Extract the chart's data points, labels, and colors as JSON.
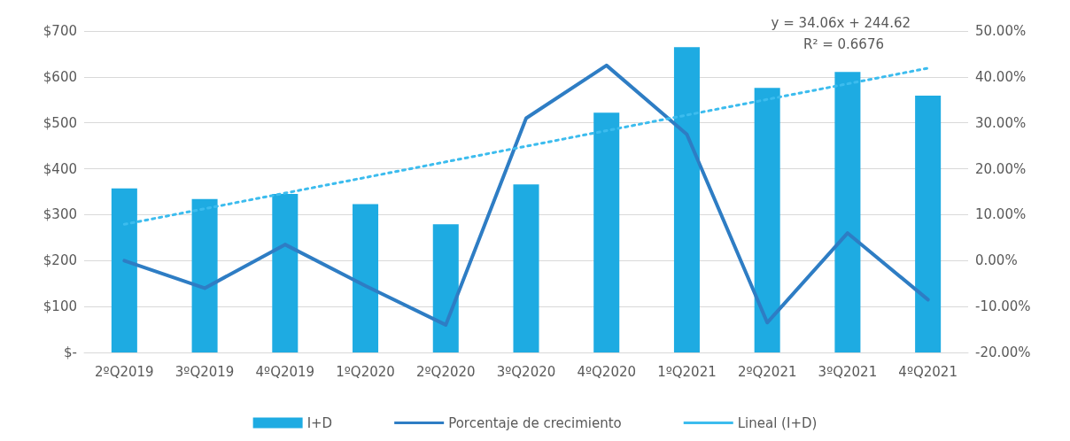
{
  "chart_data": {
    "type": "bar",
    "categories": [
      "2ºQ2019",
      "3ºQ2019",
      "4ºQ2019",
      "1ºQ2020",
      "2ºQ2020",
      "3ºQ2020",
      "4ºQ2020",
      "1ºQ2021",
      "2ºQ2021",
      "3ºQ2021",
      "4ºQ2021"
    ],
    "series": [
      {
        "name": "I+D",
        "type": "bar",
        "color": "#1eabe2",
        "values": [
          357,
          334,
          345,
          323,
          279,
          366,
          522,
          665,
          576,
          611,
          559
        ]
      },
      {
        "name": "Porcentaje de crecimiento",
        "type": "line",
        "axis": "y2",
        "color": "#2e7dc4",
        "line_style": "solid",
        "values": [
          0,
          -6,
          3.5,
          -5.5,
          -14,
          31,
          42.5,
          27.5,
          -13.5,
          6,
          -8.5
        ]
      },
      {
        "name": "Lineal (I+D)",
        "type": "line",
        "color": "#3cbcee",
        "line_style": "dotted",
        "x": [
          "2ºQ2019",
          "3ºQ2019",
          "4ºQ2019",
          "1ºQ2020",
          "2ºQ2020",
          "3ºQ2020",
          "4ºQ2020",
          "1ºQ2021",
          "2ºQ2021",
          "3ºQ2021",
          "4ºQ2021"
        ],
        "values": [
          279,
          313,
          347,
          381,
          415,
          449,
          483,
          517,
          551,
          585,
          619
        ]
      }
    ],
    "ylim": [
      0,
      700
    ],
    "yticks": [
      {
        "value": 0,
        "label": "$-"
      },
      {
        "value": 100,
        "label": "$100"
      },
      {
        "value": 200,
        "label": "$200"
      },
      {
        "value": 300,
        "label": "$300"
      },
      {
        "value": 400,
        "label": "$400"
      },
      {
        "value": 500,
        "label": "$500"
      },
      {
        "value": 600,
        "label": "$600"
      },
      {
        "value": 700,
        "label": "$700"
      }
    ],
    "y2lim": [
      -20,
      50
    ],
    "y2ticks": [
      {
        "value": -20,
        "label": "-20.00%"
      },
      {
        "value": -10,
        "label": "-10.00%"
      },
      {
        "value": 0,
        "label": "0.00%"
      },
      {
        "value": 10,
        "label": "10.00%"
      },
      {
        "value": 20,
        "label": "20.00%"
      },
      {
        "value": 30,
        "label": "30.00%"
      },
      {
        "value": 40,
        "label": "40.00%"
      },
      {
        "value": 50,
        "label": "50.00%"
      }
    ],
    "annotations": [
      "y = 34.06x + 244.62",
      "R² = 0.6676"
    ],
    "grid": "y",
    "legend": "bottom",
    "marker": "none"
  }
}
